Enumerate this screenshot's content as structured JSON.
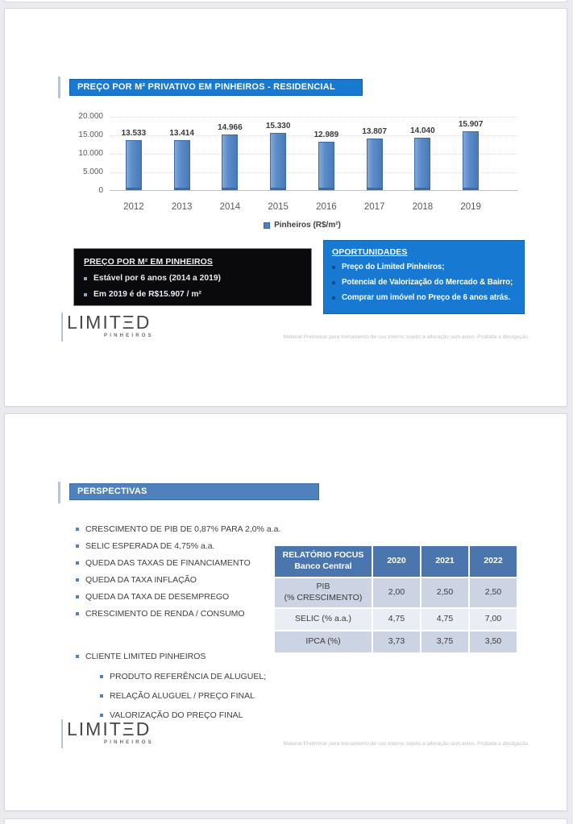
{
  "chart_data": {
    "type": "bar",
    "title": "PREÇO POR M² PRIVATIVO EM PINHEIROS - RESIDENCIAL",
    "categories": [
      "2012",
      "2013",
      "2014",
      "2015",
      "2016",
      "2017",
      "2018",
      "2019"
    ],
    "values": [
      13533,
      13414,
      14966,
      15330,
      12989,
      13807,
      14040,
      15907
    ],
    "value_labels": [
      "13.533",
      "13.414",
      "14.966",
      "15.330",
      "12.989",
      "13.807",
      "14.040",
      "15.907"
    ],
    "legend": "Pinheiros (R$/m²)",
    "ylabel": "",
    "xlabel": "",
    "ylim": [
      0,
      20000
    ],
    "y_ticks": [
      20000,
      15000,
      10000,
      5000,
      0
    ],
    "grid": true,
    "legend_position": "bottom",
    "bar_color": "#5b8bc9"
  },
  "slide1": {
    "title": "PREÇO POR M² PRIVATIVO EM PINHEIROS - RESIDENCIAL",
    "black_box": {
      "title": "PREÇO POR M² EM PINHEIROS",
      "bullets": [
        "Estável por 6 anos (2014 a 2019)",
        "Em 2019 é de R$15.907 / m²"
      ]
    },
    "blue_box": {
      "title": "OPORTUNIDADES",
      "bullets": [
        "Preço do Limited Pinheiros;",
        "Potencial de Valorização do Mercado & Bairro;",
        "Comprar um imóvel no Preço de 6 anos atrás."
      ]
    }
  },
  "slide2": {
    "title": "PERSPECTIVAS",
    "bullets": [
      "CRESCIMENTO DE PIB DE 0,87% PARA 2,0% a.a.",
      "SELIC ESPERADA DE 4,75% a.a.",
      "QUEDA DAS TAXAS DE FINANCIAMENTO",
      "QUEDA DA TAXA INFLAÇÃO",
      "QUEDA DA TAXA DE DESEMPREGO",
      "CRESCIMENTO DE RENDA / CONSUMO"
    ],
    "client_bullet": "CLIENTE LIMITED PINHEIROS",
    "sub_bullets": [
      "PRODUTO REFERÊNCIA DE ALUGUEL;",
      "RELAÇÃO ALUGUEL / PREÇO FINAL",
      "VALORIZAÇÃO DO PREÇO FINAL"
    ],
    "table": {
      "header_main_lines": [
        "RELATÓRIO FOCUS",
        "Banco Central"
      ],
      "years": [
        "2020",
        "2021",
        "2022"
      ],
      "rows": [
        {
          "label_lines": [
            "PIB",
            "(% CRESCIMENTO)"
          ],
          "values": [
            "2,00",
            "2,50",
            "2,50"
          ]
        },
        {
          "label_lines": [
            "SELIC (% a.a.)"
          ],
          "values": [
            "4,75",
            "4,75",
            "7,00"
          ]
        },
        {
          "label_lines": [
            "IPCA (%)"
          ],
          "values": [
            "3,73",
            "3,75",
            "3,50"
          ]
        }
      ]
    }
  },
  "footer": {
    "logo": "LIMITΞD",
    "logo_sub": "PINHEIROS",
    "disclaimer": "Material Preliminar para treinamento de uso interno sujeito a alteração sem aviso. Proibida a divulgação."
  },
  "colors": {
    "bright_blue": "#1779d1",
    "muted_blue": "#4f81bd",
    "table_header_blue": "#4a75ad",
    "table_row_shaded": "#ccd3e2",
    "table_row_light": "#e9edf4",
    "bar_fill": "#5b8bc9",
    "black_box_bg": "#0a0a0c",
    "page_background": "#eaeaef"
  }
}
